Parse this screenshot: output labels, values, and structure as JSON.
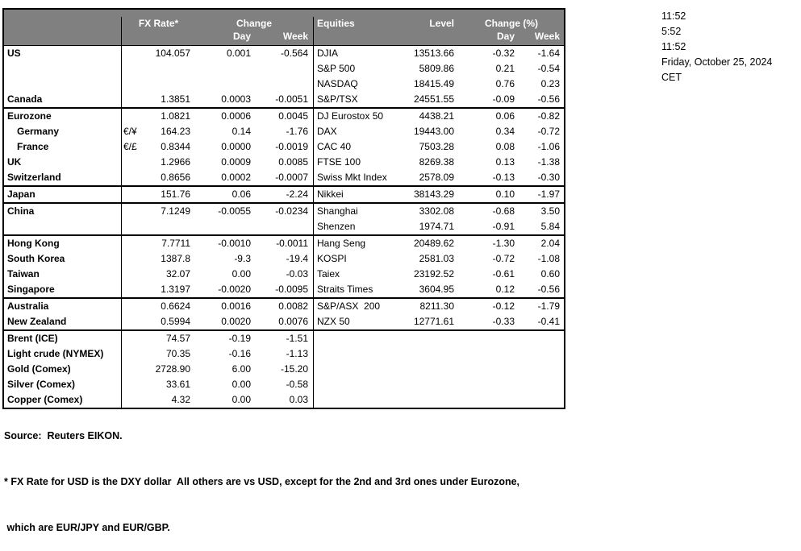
{
  "colors": {
    "header_bg": "#808080",
    "header_text": "#ffffff",
    "border": "#000000",
    "text": "#000000",
    "background": "#ffffff"
  },
  "header": {
    "fx_rate_label": "FX Rate*",
    "fx_change_label": "Change",
    "fx_day_label": "Day",
    "fx_week_label": "Week",
    "equities_label": "Equities",
    "level_label": "Level",
    "eq_change_label": "Change (%)",
    "eq_day_label": "Day",
    "eq_week_label": "Week"
  },
  "timestamps": {
    "line1": "11:52",
    "line2": "5:52",
    "line3": "11:52",
    "line4": "Friday, October 25, 2024",
    "line5": "CET"
  },
  "footnotes": {
    "source": "Source:  Reuters EIKON.",
    "note1": "* FX Rate for USD is the DXY dollar  All others are vs USD, except for the 2nd and 3rd ones under Eurozone,",
    "note2": " which are EUR/JPY and EUR/GBP."
  },
  "rows": [
    {
      "name": "US",
      "pair": "",
      "rate": "104.057",
      "day": "0.001",
      "week": "-0.564",
      "eq": "DJIA",
      "level": "13513.66",
      "eq_day": "-0.32",
      "eq_week": "-1.64",
      "indent": false,
      "group_end": false
    },
    {
      "name": "",
      "pair": "",
      "rate": "",
      "day": "",
      "week": "",
      "eq": "S&P 500",
      "level": "5809.86",
      "eq_day": "0.21",
      "eq_week": "-0.54",
      "indent": false,
      "group_end": false
    },
    {
      "name": "",
      "pair": "",
      "rate": "",
      "day": "",
      "week": "",
      "eq": "NASDAQ",
      "level": "18415.49",
      "eq_day": "0.76",
      "eq_week": "0.23",
      "indent": false,
      "group_end": false
    },
    {
      "name": "Canada",
      "pair": "",
      "rate": "1.3851",
      "day": "0.0003",
      "week": "-0.0051",
      "eq": "S&P/TSX",
      "level": "24551.55",
      "eq_day": "-0.09",
      "eq_week": "-0.56",
      "indent": false,
      "group_end": true
    },
    {
      "name": "Eurozone",
      "pair": "",
      "rate": "1.0821",
      "day": "0.0006",
      "week": "0.0045",
      "eq": "DJ Eurostox 50",
      "level": "4438.21",
      "eq_day": "0.06",
      "eq_week": "-0.82",
      "indent": false,
      "group_end": false
    },
    {
      "name": "Germany",
      "pair": "€/¥",
      "rate": "164.23",
      "day": "0.14",
      "week": "-1.76",
      "eq": "DAX",
      "level": "19443.00",
      "eq_day": "0.34",
      "eq_week": "-0.72",
      "indent": true,
      "group_end": false
    },
    {
      "name": "France",
      "pair": "€/£",
      "rate": "0.8344",
      "day": "0.0000",
      "week": "-0.0019",
      "eq": "CAC 40",
      "level": "7503.28",
      "eq_day": "0.08",
      "eq_week": "-1.06",
      "indent": true,
      "group_end": false
    },
    {
      "name": "UK",
      "pair": "",
      "rate": "1.2966",
      "day": "0.0009",
      "week": "0.0085",
      "eq": "FTSE 100",
      "level": "8269.38",
      "eq_day": "0.13",
      "eq_week": "-1.38",
      "indent": false,
      "group_end": false
    },
    {
      "name": "Switzerland",
      "pair": "",
      "rate": "0.8656",
      "day": "0.0002",
      "week": "-0.0007",
      "eq": "Swiss Mkt Index",
      "level": "2578.09",
      "eq_day": "-0.13",
      "eq_week": "-0.30",
      "indent": false,
      "group_end": true
    },
    {
      "name": "Japan",
      "pair": "",
      "rate": "151.76",
      "day": "0.06",
      "week": "-2.24",
      "eq": "Nikkei",
      "level": "38143.29",
      "eq_day": "0.10",
      "eq_week": "-1.97",
      "indent": false,
      "group_end": true
    },
    {
      "name": "China",
      "pair": "",
      "rate": "7.1249",
      "day": "-0.0055",
      "week": "-0.0234",
      "eq": "Shanghai",
      "level": "3302.08",
      "eq_day": "-0.68",
      "eq_week": "3.50",
      "indent": false,
      "group_end": false
    },
    {
      "name": "",
      "pair": "",
      "rate": "",
      "day": "",
      "week": "",
      "eq": "Shenzen",
      "level": "1974.71",
      "eq_day": "-0.91",
      "eq_week": "5.84",
      "indent": false,
      "group_end": true
    },
    {
      "name": "Hong Kong",
      "pair": "",
      "rate": "7.7711",
      "day": "-0.0010",
      "week": "-0.0011",
      "eq": "Hang Seng",
      "level": "20489.62",
      "eq_day": "-1.30",
      "eq_week": "2.04",
      "indent": false,
      "group_end": false
    },
    {
      "name": "South Korea",
      "pair": "",
      "rate": "1387.8",
      "day": "-9.3",
      "week": "-19.4",
      "eq": "KOSPI",
      "level": "2581.03",
      "eq_day": "-0.72",
      "eq_week": "-1.08",
      "indent": false,
      "group_end": false
    },
    {
      "name": "Taiwan",
      "pair": "",
      "rate": "32.07",
      "day": "0.00",
      "week": "-0.03",
      "eq": "Taiex",
      "level": "23192.52",
      "eq_day": "-0.61",
      "eq_week": "0.60",
      "indent": false,
      "group_end": false
    },
    {
      "name": "Singapore",
      "pair": "",
      "rate": "1.3197",
      "day": "-0.0020",
      "week": "-0.0095",
      "eq": "Straits Times",
      "level": "3604.95",
      "eq_day": "0.12",
      "eq_week": "-0.56",
      "indent": false,
      "group_end": true
    },
    {
      "name": "Australia",
      "pair": "",
      "rate": "0.6624",
      "day": "0.0016",
      "week": "0.0082",
      "eq": "S&P/ASX  200",
      "level": "8211.30",
      "eq_day": "-0.12",
      "eq_week": "-1.79",
      "indent": false,
      "group_end": false
    },
    {
      "name": "New Zealand",
      "pair": "",
      "rate": "0.5994",
      "day": "0.0020",
      "week": "0.0076",
      "eq": "NZX 50",
      "level": "12771.61",
      "eq_day": "-0.33",
      "eq_week": "-0.41",
      "indent": false,
      "group_end": true
    },
    {
      "name": "Brent (ICE)",
      "pair": "",
      "rate": "74.57",
      "day": "-0.19",
      "week": "-1.51",
      "eq": "",
      "level": "",
      "eq_day": "",
      "eq_week": "",
      "indent": false,
      "group_end": false
    },
    {
      "name": "Light crude (NYMEX)",
      "pair": "",
      "rate": "70.35",
      "day": "-0.16",
      "week": "-1.13",
      "eq": "",
      "level": "",
      "eq_day": "",
      "eq_week": "",
      "indent": false,
      "group_end": false
    },
    {
      "name": "Gold (Comex)",
      "pair": "",
      "rate": "2728.90",
      "day": "6.00",
      "week": "-15.20",
      "eq": "",
      "level": "",
      "eq_day": "",
      "eq_week": "",
      "indent": false,
      "group_end": false
    },
    {
      "name": "Silver (Comex)",
      "pair": "",
      "rate": "33.61",
      "day": "0.00",
      "week": "-0.58",
      "eq": "",
      "level": "",
      "eq_day": "",
      "eq_week": "",
      "indent": false,
      "group_end": false
    },
    {
      "name": "Copper (Comex)",
      "pair": "",
      "rate": "4.32",
      "day": "0.00",
      "week": "0.03",
      "eq": "",
      "level": "",
      "eq_day": "",
      "eq_week": "",
      "indent": false,
      "group_end": false
    }
  ]
}
